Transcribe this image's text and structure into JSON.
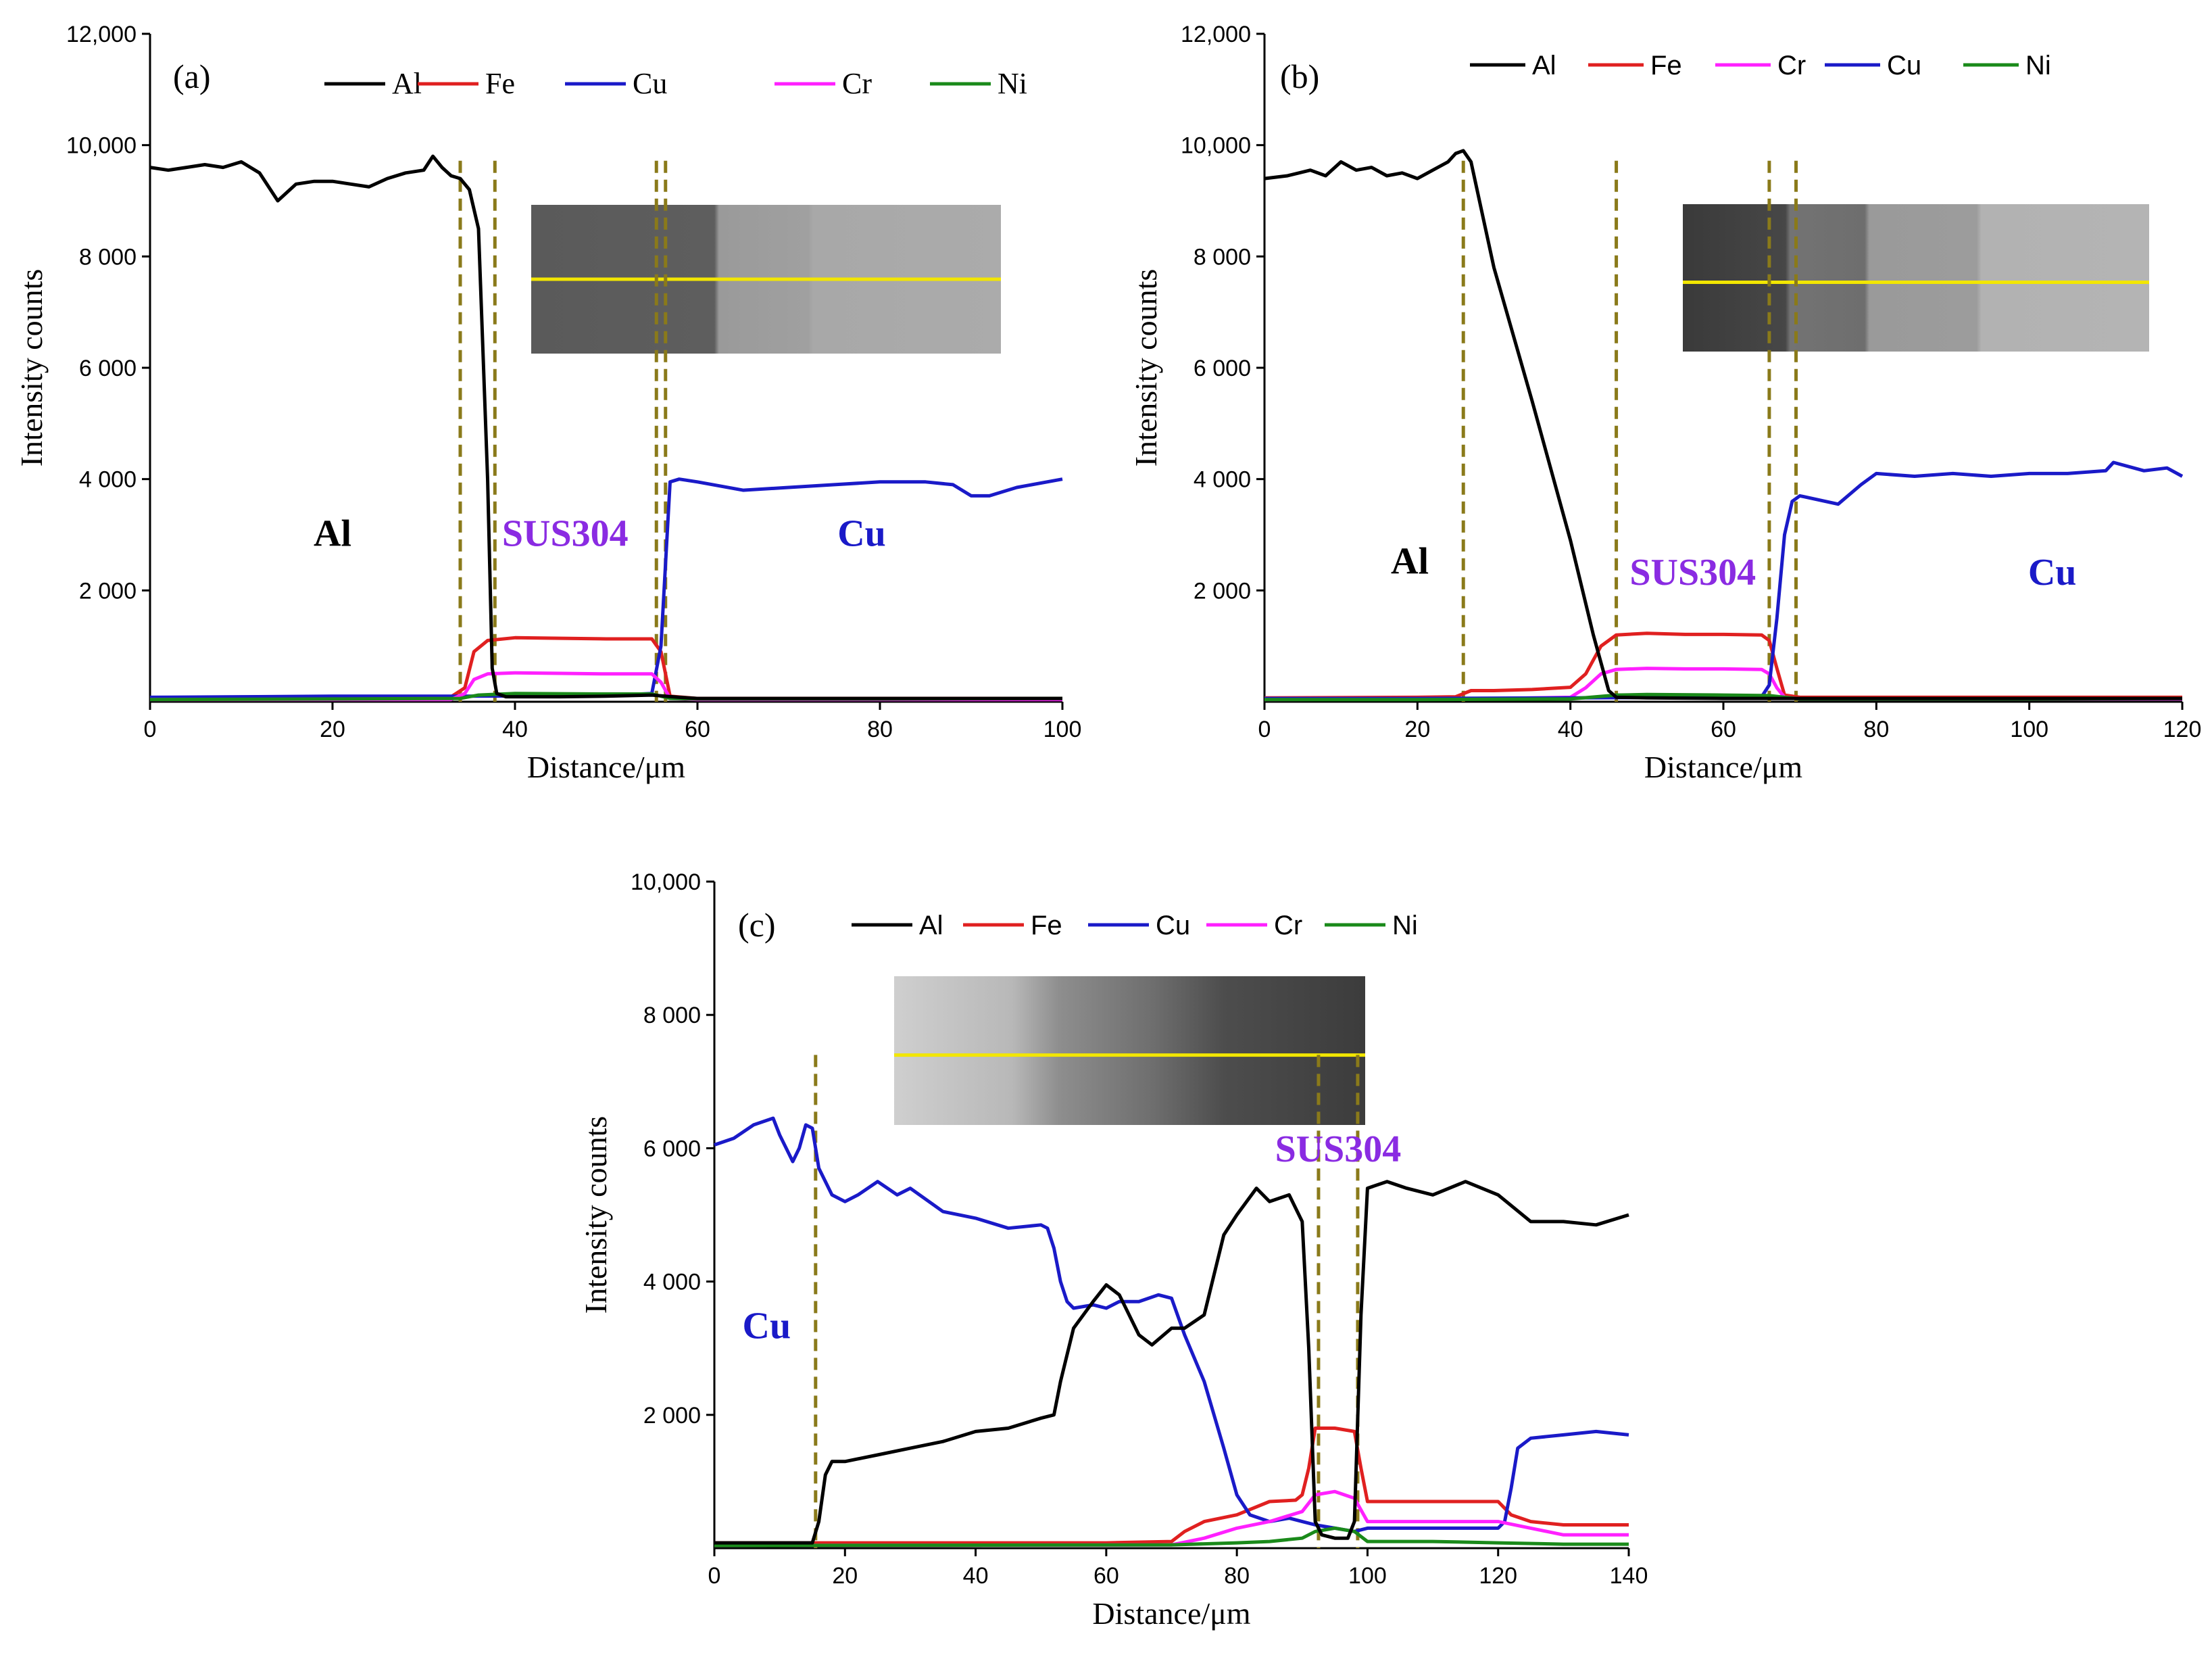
{
  "chart_data": [
    {
      "panel": "(a)",
      "type": "line",
      "xlabel": "Distance/μm",
      "ylabel": "Intensity counts",
      "xlim": [
        0,
        100
      ],
      "ylim": [
        0,
        12000
      ],
      "xticks": [
        0,
        20,
        40,
        60,
        80,
        100
      ],
      "yticks": [
        2000,
        4000,
        6000,
        8000,
        10000,
        12000
      ],
      "ytick_labels": [
        "2 000",
        "4 000",
        "6 000",
        "8 000",
        "10,000",
        "12,000"
      ],
      "legend_font": "serif",
      "legend": [
        "Al",
        "Fe",
        "Cu",
        "Cr",
        "Ni"
      ],
      "colors": {
        "Al": "#000000",
        "Fe": "#e02020",
        "Cu": "#1a1ac8",
        "Cr": "#ff20ff",
        "Ni": "#1a8a1a"
      },
      "boundaries": [
        34,
        37.8,
        55.5,
        56.5
      ],
      "regions": [
        {
          "label": "Al",
          "x": 20,
          "y": 2800,
          "color": "#000000"
        },
        {
          "label": "SUS304",
          "x": 45.5,
          "y": 2800,
          "color": "#8a2be2"
        },
        {
          "label": "Cu",
          "x": 78,
          "y": 2800,
          "color": "#1a1ac8"
        }
      ],
      "series": [
        {
          "name": "Al",
          "x": [
            0,
            2,
            4,
            6,
            8,
            10,
            12,
            14,
            16,
            18,
            20,
            22,
            24,
            26,
            28,
            30,
            31,
            32,
            33,
            34,
            35,
            36,
            37,
            37.5,
            38,
            39,
            40,
            45,
            50,
            55,
            58,
            60,
            70,
            80,
            90,
            100
          ],
          "y": [
            9600,
            9550,
            9600,
            9650,
            9600,
            9700,
            9500,
            9000,
            9300,
            9350,
            9350,
            9300,
            9250,
            9400,
            9500,
            9550,
            9800,
            9600,
            9450,
            9400,
            9200,
            8500,
            4000,
            600,
            150,
            90,
            90,
            90,
            100,
            120,
            80,
            60,
            60,
            60,
            60,
            60
          ]
        },
        {
          "name": "Fe",
          "x": [
            0,
            20,
            33,
            34.5,
            35.5,
            37,
            40,
            45,
            50,
            55,
            56,
            57,
            60,
            80,
            100
          ],
          "y": [
            70,
            80,
            90,
            250,
            900,
            1100,
            1150,
            1140,
            1130,
            1130,
            900,
            100,
            60,
            60,
            60
          ]
        },
        {
          "name": "Cu",
          "x": [
            0,
            10,
            20,
            30,
            34,
            50,
            55,
            56,
            57,
            58,
            60,
            65,
            70,
            75,
            80,
            85,
            88,
            90,
            92,
            95,
            100
          ],
          "y": [
            80,
            90,
            100,
            100,
            100,
            110,
            150,
            1000,
            3950,
            4000,
            3950,
            3800,
            3850,
            3900,
            3950,
            3950,
            3900,
            3700,
            3700,
            3850,
            4000
          ]
        },
        {
          "name": "Cr",
          "x": [
            0,
            33,
            34.5,
            35.5,
            37,
            40,
            45,
            50,
            55,
            56,
            57,
            60,
            100
          ],
          "y": [
            40,
            40,
            150,
            400,
            500,
            520,
            510,
            500,
            500,
            350,
            60,
            40,
            40
          ]
        },
        {
          "name": "Ni",
          "x": [
            0,
            20,
            34,
            36,
            40,
            50,
            55,
            57,
            60,
            80,
            100
          ],
          "y": [
            40,
            50,
            60,
            120,
            150,
            140,
            140,
            60,
            50,
            50,
            60
          ]
        }
      ]
    },
    {
      "panel": "(b)",
      "type": "line",
      "xlabel": "Distance/μm",
      "ylabel": "Intensity counts",
      "xlim": [
        0,
        120
      ],
      "ylim": [
        0,
        12000
      ],
      "xticks": [
        0,
        20,
        40,
        60,
        80,
        100,
        120
      ],
      "yticks": [
        2000,
        4000,
        6000,
        8000,
        10000,
        12000
      ],
      "ytick_labels": [
        "2 000",
        "4 000",
        "6 000",
        "8 000",
        "10,000",
        "12,000"
      ],
      "legend_font": "sans",
      "legend": [
        "Al",
        "Fe",
        "Cr",
        "Cu",
        "Ni"
      ],
      "colors": {
        "Al": "#000000",
        "Fe": "#e02020",
        "Cr": "#ff20ff",
        "Cu": "#1a1ac8",
        "Ni": "#1a8a1a"
      },
      "boundaries": [
        26,
        46,
        66,
        69.5
      ],
      "regions": [
        {
          "label": "Al",
          "x": 19,
          "y": 2300,
          "color": "#000000"
        },
        {
          "label": "SUS304",
          "x": 56,
          "y": 2100,
          "color": "#8a2be2"
        },
        {
          "label": "Cu",
          "x": 103,
          "y": 2100,
          "color": "#1a1ac8"
        }
      ],
      "series": [
        {
          "name": "Al",
          "x": [
            0,
            3,
            6,
            8,
            10,
            12,
            14,
            16,
            18,
            20,
            22,
            24,
            25,
            26,
            27,
            30,
            35,
            40,
            43,
            45,
            46,
            50,
            60,
            70,
            80,
            100,
            120
          ],
          "y": [
            9400,
            9450,
            9550,
            9450,
            9700,
            9550,
            9600,
            9450,
            9500,
            9400,
            9550,
            9700,
            9850,
            9900,
            9700,
            7800,
            5400,
            2900,
            1200,
            200,
            80,
            70,
            60,
            60,
            60,
            60,
            60
          ]
        },
        {
          "name": "Fe",
          "x": [
            0,
            20,
            25,
            27,
            30,
            35,
            40,
            42,
            44,
            46,
            50,
            55,
            60,
            65,
            66,
            67,
            68,
            70,
            100,
            120
          ],
          "y": [
            70,
            80,
            90,
            200,
            200,
            220,
            260,
            500,
            1000,
            1200,
            1230,
            1210,
            1210,
            1200,
            1100,
            600,
            120,
            80,
            80,
            80
          ]
        },
        {
          "name": "Cr",
          "x": [
            0,
            25,
            30,
            40,
            42,
            44,
            46,
            50,
            55,
            60,
            65,
            66,
            67,
            68,
            70,
            120
          ],
          "y": [
            40,
            50,
            60,
            80,
            250,
            500,
            580,
            600,
            590,
            590,
            580,
            500,
            250,
            80,
            50,
            50
          ]
        },
        {
          "name": "Cu",
          "x": [
            0,
            20,
            40,
            60,
            65,
            66,
            67,
            68,
            69,
            70,
            75,
            78,
            80,
            85,
            90,
            95,
            100,
            105,
            110,
            111,
            115,
            118,
            120
          ],
          "y": [
            60,
            60,
            70,
            80,
            90,
            300,
            1500,
            3000,
            3600,
            3700,
            3550,
            3900,
            4100,
            4050,
            4100,
            4050,
            4100,
            4100,
            4150,
            4300,
            4150,
            4200,
            4050
          ]
        },
        {
          "name": "Ni",
          "x": [
            0,
            20,
            40,
            46,
            50,
            60,
            66,
            70,
            100,
            120
          ],
          "y": [
            40,
            40,
            50,
            120,
            130,
            120,
            110,
            50,
            50,
            60
          ]
        }
      ]
    },
    {
      "panel": "(c)",
      "type": "line",
      "xlabel": "Distance/μm",
      "ylabel": "Intensity counts",
      "xlim": [
        0,
        140
      ],
      "ylim": [
        0,
        10000
      ],
      "xticks": [
        0,
        20,
        40,
        60,
        80,
        100,
        120,
        140
      ],
      "yticks": [
        2000,
        4000,
        6000,
        8000,
        10000
      ],
      "ytick_labels": [
        "2 000",
        "4 000",
        "6 000",
        "8 000",
        "10,000"
      ],
      "legend_font": "sans",
      "legend": [
        "Al",
        "Fe",
        "Cu",
        "Cr",
        "Ni"
      ],
      "colors": {
        "Al": "#000000",
        "Fe": "#e02020",
        "Cu": "#1a1ac8",
        "Cr": "#ff20ff",
        "Ni": "#1a8a1a"
      },
      "boundaries": [
        15.5,
        92.5,
        98.5
      ],
      "regions": [
        {
          "label": "Cu",
          "x": 8,
          "y": 3150,
          "color": "#1a1ac8"
        },
        {
          "label": "SUS304",
          "x": 95.5,
          "y": 5800,
          "color": "#8a2be2"
        }
      ],
      "series": [
        {
          "name": "Al",
          "x": [
            0,
            10,
            15,
            16,
            17,
            18,
            20,
            25,
            30,
            35,
            40,
            45,
            50,
            52,
            53,
            55,
            58,
            60,
            62,
            65,
            67,
            70,
            72,
            75,
            78,
            80,
            83,
            85,
            88,
            90,
            91,
            92,
            93,
            95,
            97,
            98,
            99,
            100,
            103,
            106,
            110,
            115,
            120,
            125,
            130,
            135,
            140
          ],
          "y": [
            80,
            80,
            80,
            400,
            1100,
            1300,
            1300,
            1400,
            1500,
            1600,
            1750,
            1800,
            1950,
            2000,
            2500,
            3300,
            3700,
            3950,
            3800,
            3200,
            3050,
            3300,
            3300,
            3500,
            4700,
            5000,
            5400,
            5200,
            5300,
            4900,
            3000,
            400,
            200,
            150,
            150,
            400,
            3500,
            5400,
            5500,
            5400,
            5300,
            5500,
            5300,
            4900,
            4900,
            4850,
            5000
          ]
        },
        {
          "name": "Fe",
          "x": [
            0,
            60,
            70,
            72,
            75,
            80,
            85,
            89,
            90,
            91,
            92,
            95,
            98,
            99,
            100,
            110,
            120,
            122,
            125,
            130,
            135,
            140
          ],
          "y": [
            80,
            80,
            100,
            250,
            400,
            500,
            700,
            720,
            800,
            1200,
            1800,
            1800,
            1750,
            1200,
            700,
            700,
            700,
            500,
            400,
            350,
            350,
            350
          ]
        },
        {
          "name": "Cu",
          "x": [
            0,
            3,
            6,
            9,
            10,
            12,
            13,
            14,
            15,
            16,
            18,
            20,
            22,
            25,
            28,
            30,
            35,
            40,
            45,
            50,
            51,
            52,
            53,
            54,
            55,
            58,
            60,
            62,
            65,
            68,
            70,
            72,
            75,
            78,
            80,
            82,
            85,
            88,
            90,
            92,
            95,
            98,
            100,
            105,
            110,
            115,
            120,
            121,
            122,
            123,
            125,
            130,
            135,
            140
          ],
          "y": [
            6050,
            6150,
            6350,
            6450,
            6200,
            5800,
            6000,
            6350,
            6300,
            5700,
            5300,
            5200,
            5300,
            5500,
            5300,
            5400,
            5050,
            4950,
            4800,
            4850,
            4800,
            4500,
            4000,
            3700,
            3600,
            3650,
            3600,
            3700,
            3700,
            3800,
            3750,
            3200,
            2500,
            1500,
            800,
            500,
            400,
            450,
            400,
            350,
            300,
            250,
            300,
            300,
            300,
            300,
            300,
            400,
            900,
            1500,
            1650,
            1700,
            1750,
            1700
          ]
        },
        {
          "name": "Cr",
          "x": [
            0,
            70,
            75,
            80,
            85,
            90,
            92,
            95,
            98,
            100,
            110,
            120,
            125,
            130,
            140
          ],
          "y": [
            40,
            50,
            150,
            300,
            400,
            550,
            800,
            850,
            750,
            400,
            400,
            400,
            300,
            200,
            200
          ]
        },
        {
          "name": "Ni",
          "x": [
            0,
            70,
            80,
            85,
            90,
            92,
            95,
            98,
            100,
            110,
            120,
            130,
            140
          ],
          "y": [
            40,
            50,
            80,
            100,
            150,
            250,
            300,
            250,
            100,
            100,
            80,
            60,
            60
          ]
        }
      ]
    }
  ]
}
